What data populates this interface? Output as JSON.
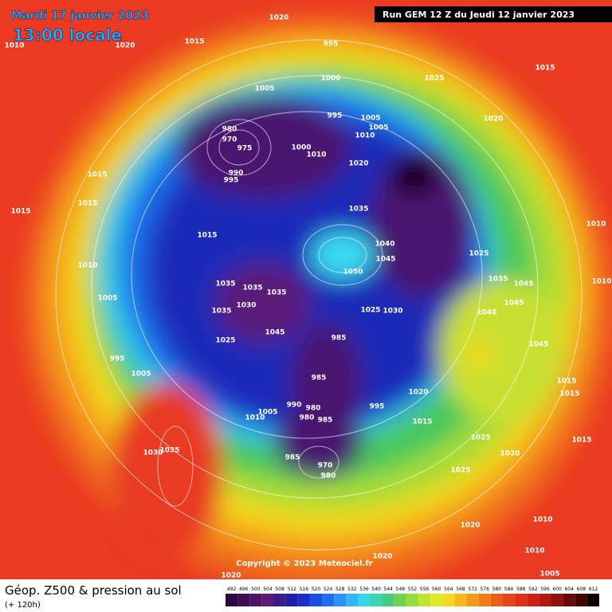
{
  "header": {
    "date": "Mardi 17 janvier 2023",
    "time": "13:00 locale",
    "run": "Run GEM 12 Z du Jeudi 12 janvier 2023"
  },
  "footer": {
    "title": "Géop. Z500 & pression au sol",
    "lead": "(+ 120h)",
    "copyright": "Copyright © 2023 Meteociel.fr"
  },
  "scale": {
    "labels": [
      492,
      496,
      500,
      504,
      508,
      512,
      516,
      520,
      524,
      528,
      532,
      536,
      540,
      544,
      548,
      552,
      556,
      560,
      564,
      568,
      572,
      576,
      580,
      584,
      588,
      592,
      596,
      600,
      604,
      608,
      612
    ],
    "colors": [
      "#2b0a3d",
      "#3d0f52",
      "#4e1466",
      "#5e1a78",
      "#3a1a8c",
      "#1e1ea8",
      "#1a2fc8",
      "#1a4ee0",
      "#1e6ef0",
      "#2a92f5",
      "#30b6f2",
      "#36d6e6",
      "#3ad6b4",
      "#46cc78",
      "#6ed250",
      "#96dc3a",
      "#bee42e",
      "#e2ea26",
      "#f4d81e",
      "#f6b81c",
      "#f49a1a",
      "#f07c18",
      "#ec5e18",
      "#e84418",
      "#e02c18",
      "#cc2014",
      "#b01810",
      "#90100c",
      "#6a0a08",
      "#400604",
      "#0a0000"
    ]
  },
  "map": {
    "labels": [
      "1020",
      "1015",
      "1020",
      "1010",
      "995",
      "1000",
      "1005",
      "1025",
      "1015",
      "995",
      "1005",
      "1005",
      "1010",
      "980",
      "970",
      "975",
      "1000",
      "1010",
      "1020",
      "990",
      "995",
      "1020",
      "1015",
      "1015",
      "1015",
      "1035",
      "1015",
      "1040",
      "1045",
      "1025",
      "1010",
      "1010",
      "1050",
      "1035",
      "1035",
      "1035",
      "1035",
      "1045",
      "1010",
      "1005",
      "1030",
      "1035",
      "1025",
      "1030",
      "1040",
      "1045",
      "1045",
      "1025",
      "985",
      "1045",
      "995",
      "1005",
      "985",
      "1015",
      "1020",
      "1015",
      "980",
      "995",
      "990",
      "1005",
      "1010",
      "980",
      "985",
      "1015",
      "1025",
      "1015",
      "1035",
      "1030",
      "1020",
      "985",
      "970",
      "980",
      "1025",
      "1020",
      "1010",
      "1010",
      "1020",
      "1020",
      "1005"
    ]
  }
}
